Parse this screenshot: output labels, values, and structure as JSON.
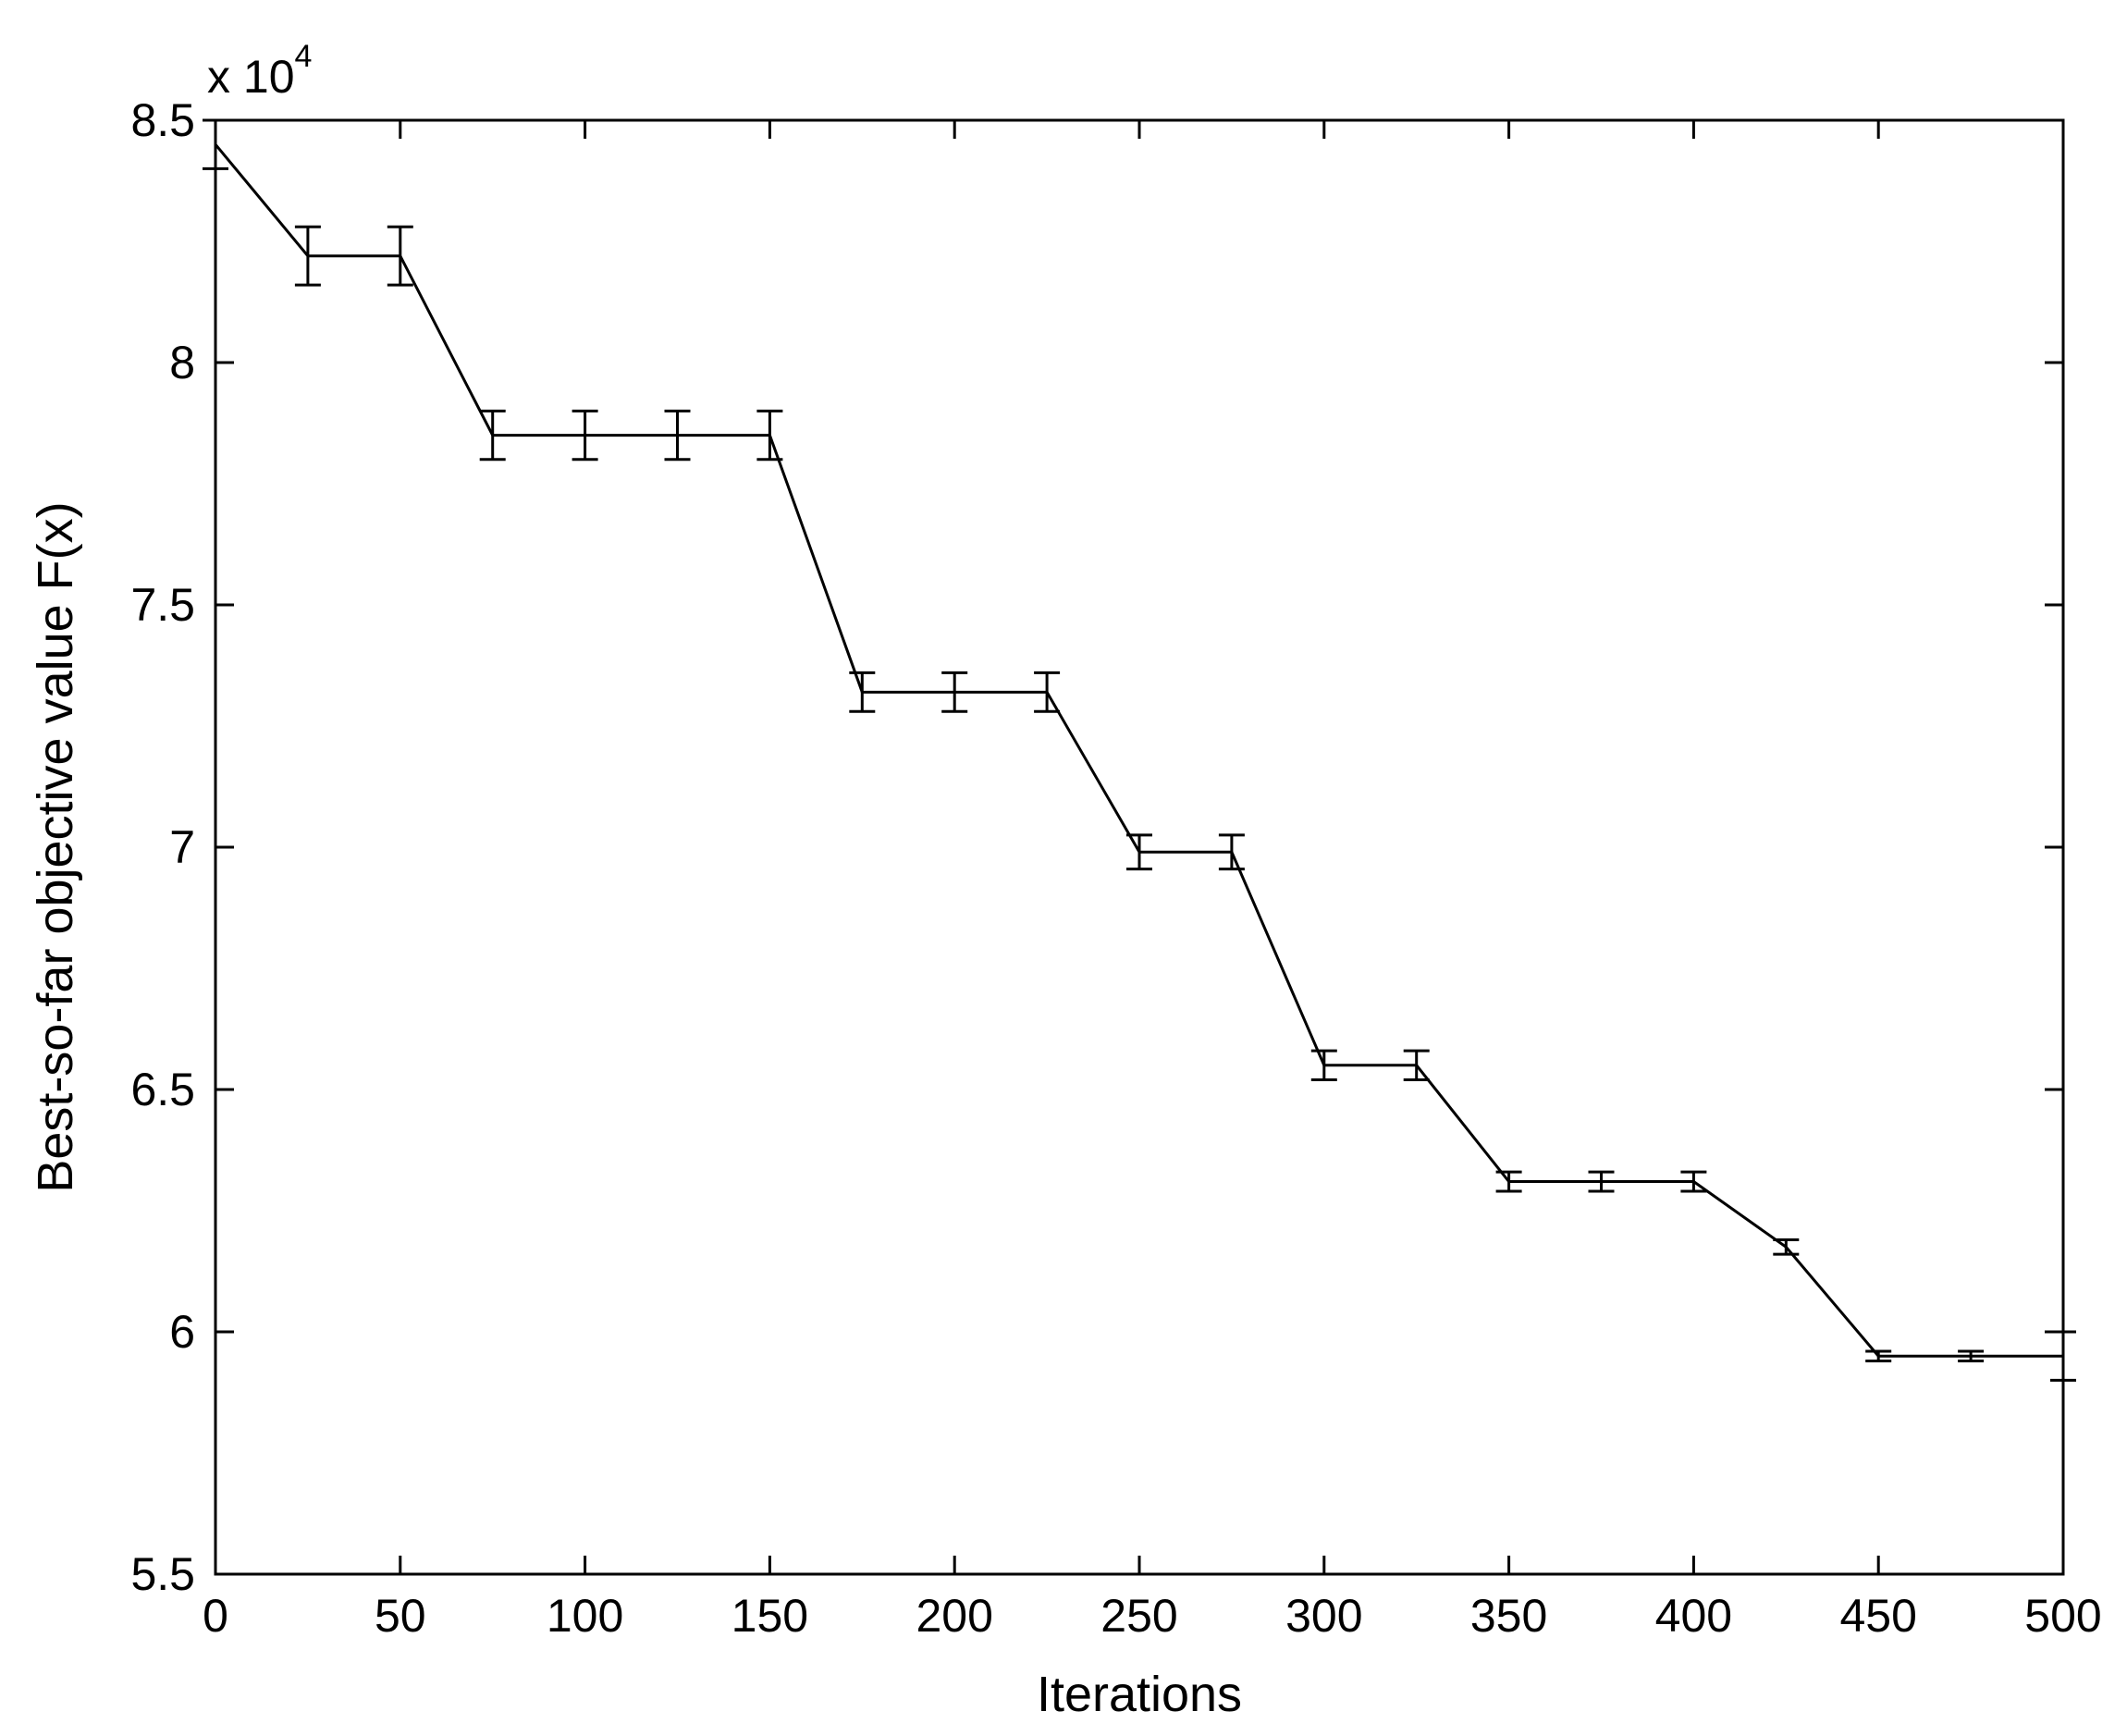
{
  "chart_data": {
    "type": "line",
    "title": "",
    "xlabel": "Iterations",
    "ylabel": "Best-so-far objective value F(x)",
    "y_multiplier_label": "x 10",
    "y_multiplier_exponent": "4",
    "xlim": [
      0,
      500
    ],
    "ylim": [
      5.5,
      8.5
    ],
    "x_ticks": [
      0,
      50,
      100,
      150,
      200,
      250,
      300,
      350,
      400,
      450,
      500
    ],
    "x_tick_labels": [
      "0",
      "50",
      "100",
      "150",
      "200",
      "250",
      "300",
      "350",
      "400",
      "450",
      "500"
    ],
    "y_ticks": [
      5.5,
      6,
      6.5,
      7,
      7.5,
      8,
      8.5
    ],
    "y_tick_labels": [
      "5.5",
      "6",
      "6.5",
      "7",
      "7.5",
      "8",
      "8.5"
    ],
    "grid": false,
    "legend": "none",
    "line_color": "#000000",
    "series": [
      {
        "x": [
          0,
          25,
          50,
          75,
          100,
          125,
          150,
          175,
          200,
          225,
          250,
          275,
          300,
          325,
          350,
          375,
          400,
          425,
          450,
          475,
          500
        ],
        "y": [
          8.45,
          8.22,
          8.22,
          7.85,
          7.85,
          7.85,
          7.85,
          7.32,
          7.32,
          7.32,
          6.99,
          6.99,
          6.55,
          6.55,
          6.31,
          6.31,
          6.31,
          6.175,
          5.95,
          5.95,
          5.95
        ],
        "error": [
          0.05,
          0.06,
          0.06,
          0.05,
          0.05,
          0.05,
          0.05,
          0.04,
          0.04,
          0.04,
          0.035,
          0.035,
          0.03,
          0.03,
          0.02,
          0.02,
          0.02,
          0.015,
          0.01,
          0.01,
          0.05
        ]
      }
    ]
  }
}
